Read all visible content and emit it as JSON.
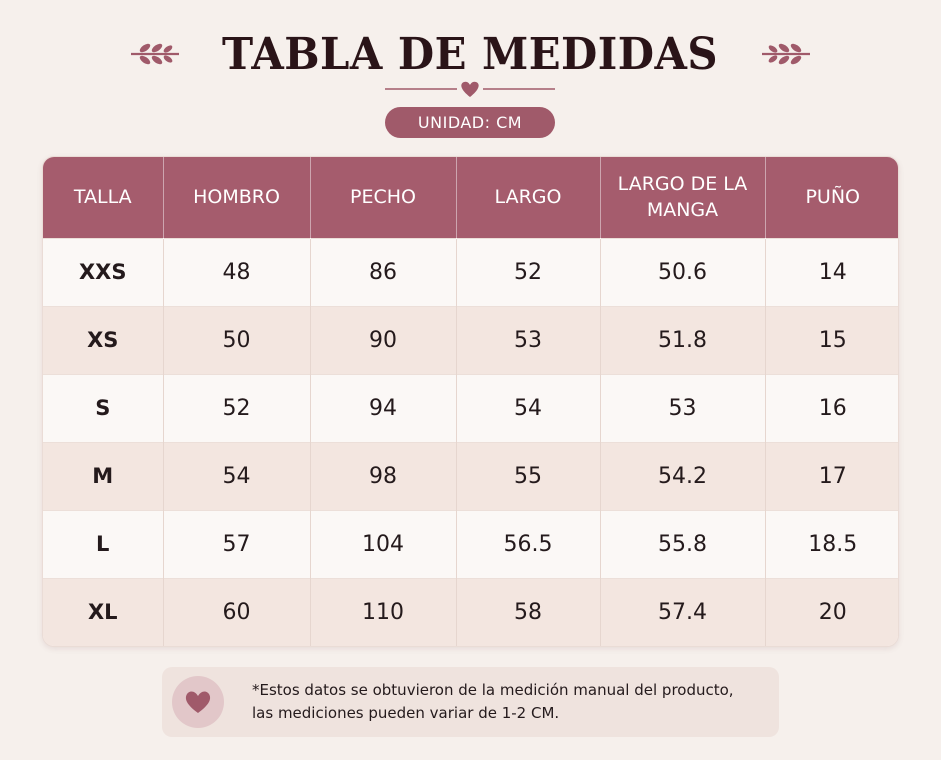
{
  "title": "TABLA DE MEDIDAS",
  "unit_label": "UNIDAD: CM",
  "colors": {
    "accent": "#a55c6d",
    "background": "#f6f0ec",
    "row_alt": "#f3e6e0"
  },
  "icons": {
    "left_ornament": "laurel-sprig-icon",
    "right_ornament": "laurel-sprig-icon",
    "divider": "heart-icon",
    "note": "heart-icon"
  },
  "table": {
    "headers": [
      "TALLA",
      "HOMBRO",
      "PECHO",
      "LARGO",
      "LARGO DE LA MANGA",
      "PUÑO"
    ],
    "rows": [
      [
        "XXS",
        "48",
        "86",
        "52",
        "50.6",
        "14"
      ],
      [
        "XS",
        "50",
        "90",
        "53",
        "51.8",
        "15"
      ],
      [
        "S",
        "52",
        "94",
        "54",
        "53",
        "16"
      ],
      [
        "M",
        "54",
        "98",
        "55",
        "54.2",
        "17"
      ],
      [
        "L",
        "57",
        "104",
        "56.5",
        "55.8",
        "18.5"
      ],
      [
        "XL",
        "60",
        "110",
        "58",
        "57.4",
        "20"
      ]
    ]
  },
  "note": {
    "line1": "*Estos datos se obtuvieron de la medición manual del producto,",
    "line2": "las mediciones pueden variar de 1-2 CM."
  }
}
